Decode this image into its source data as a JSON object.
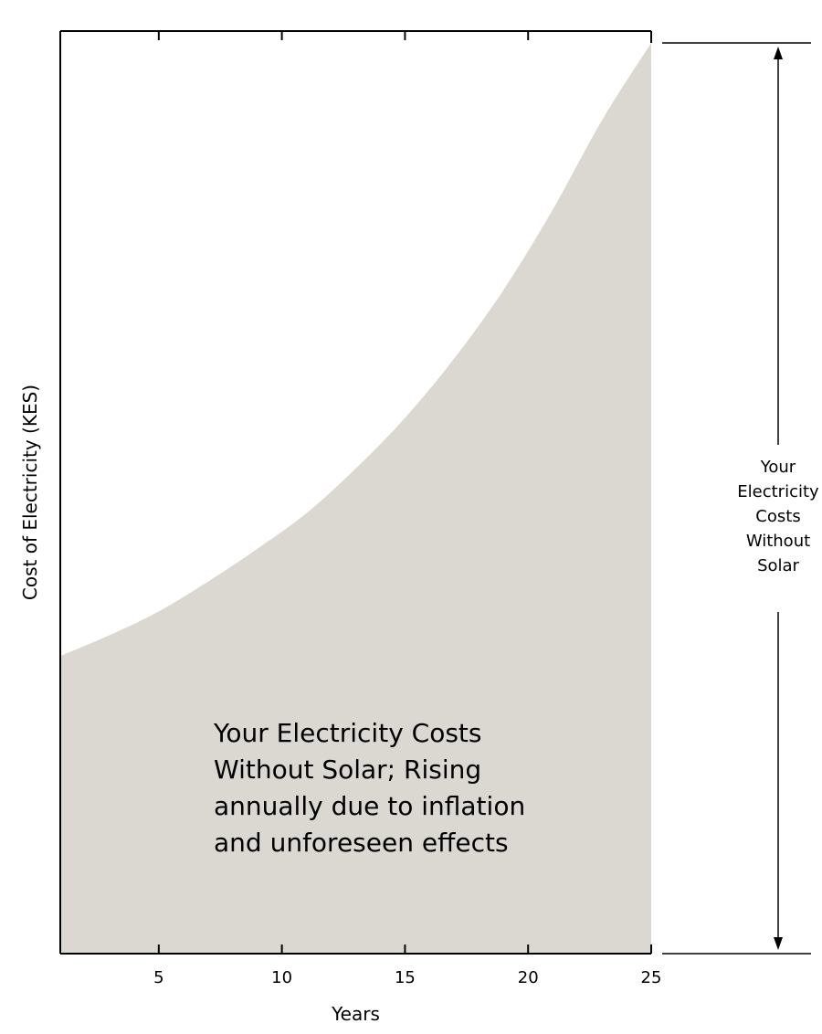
{
  "chart_data": {
    "type": "area",
    "title": "",
    "xlabel": "Years",
    "ylabel": "Cost of Electricity (KES)",
    "x": [
      1,
      3,
      5,
      7,
      9,
      11,
      13,
      15,
      17,
      19,
      21,
      23,
      25
    ],
    "y": [
      1.0,
      1.07,
      1.15,
      1.25,
      1.36,
      1.48,
      1.63,
      1.8,
      2.0,
      2.23,
      2.5,
      2.8,
      3.06
    ],
    "xlim": [
      1,
      25
    ],
    "ylim": [
      0,
      3.1
    ],
    "x_ticks": [
      {
        "value": 5,
        "label": "5"
      },
      {
        "value": 10,
        "label": "10"
      },
      {
        "value": 15,
        "label": "15"
      },
      {
        "value": 20,
        "label": "20"
      },
      {
        "value": 25,
        "label": "25"
      }
    ],
    "y_tick_labels": false,
    "grid": false,
    "legend": "none",
    "fill_color": "#dbd8d2",
    "line_color": "#000000",
    "annotations": {
      "inside": [
        "Your Electricity Costs",
        "Without Solar; Rising",
        "annually due to inflation",
        "and unforeseen effects"
      ],
      "bracket": [
        "Your",
        "Electricity",
        "Costs",
        "Without",
        "Solar"
      ]
    }
  }
}
